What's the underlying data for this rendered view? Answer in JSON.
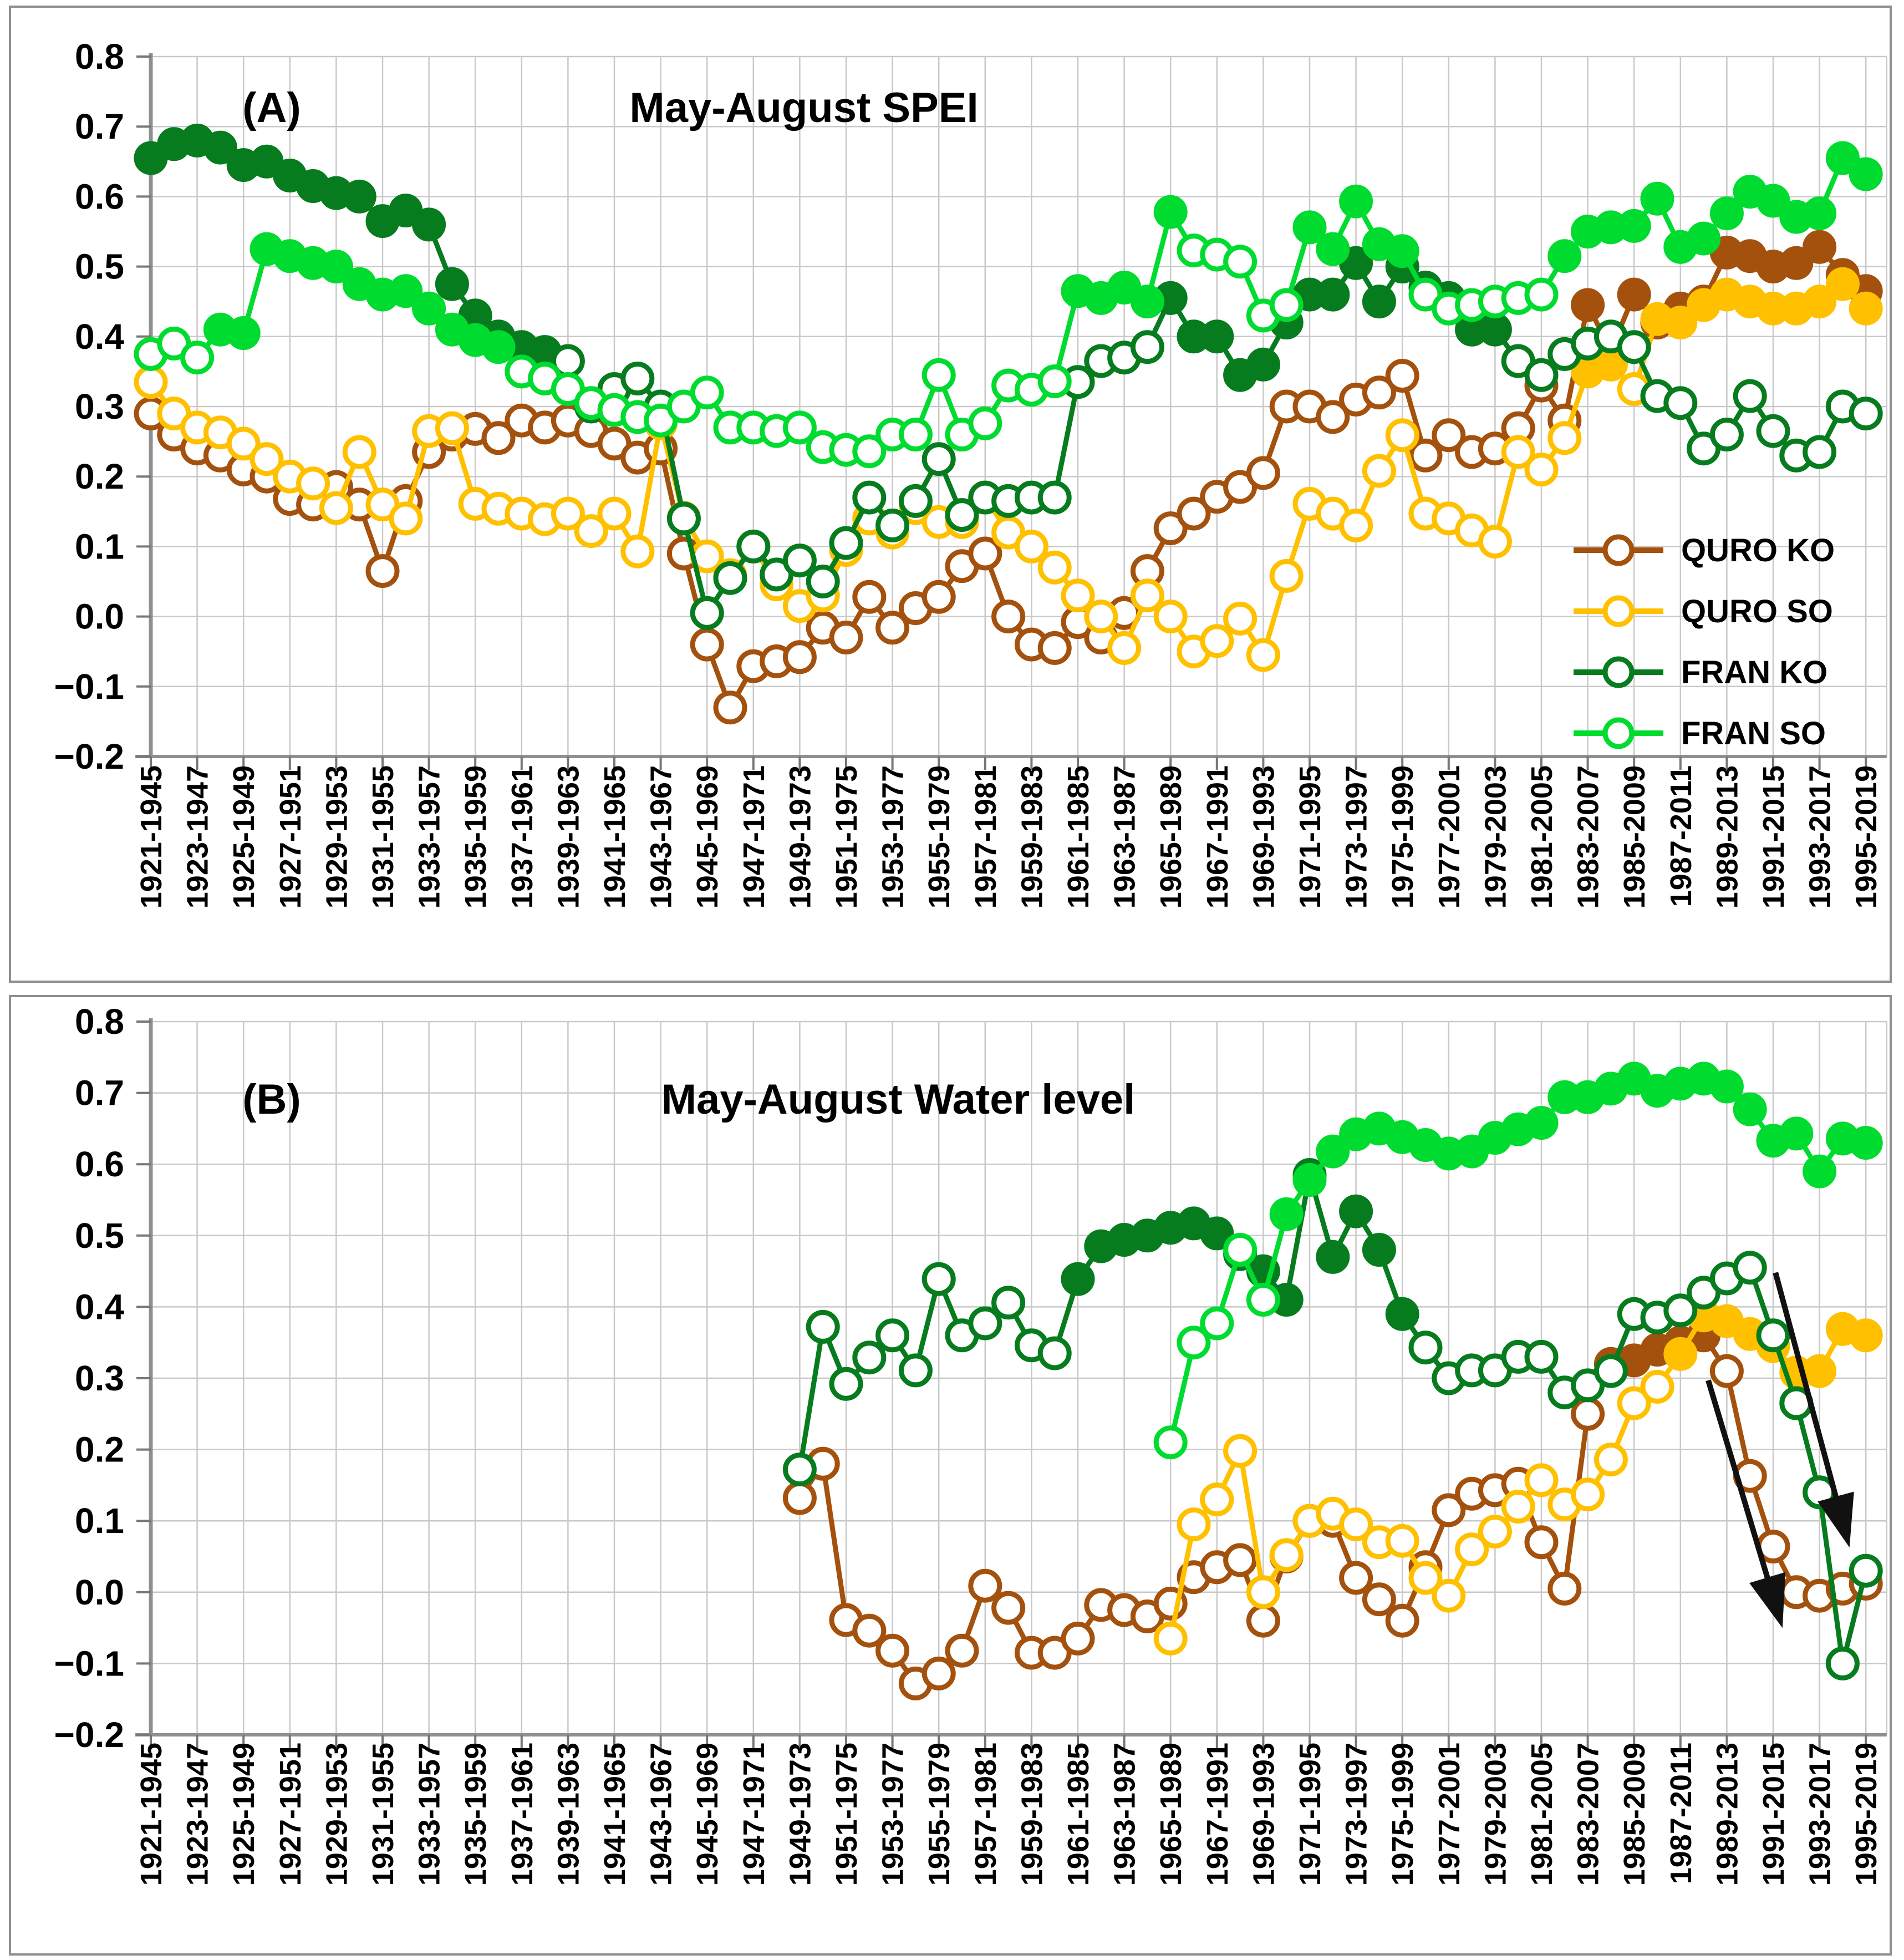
{
  "figure": {
    "panel_a": {
      "label": "(A)",
      "title": "May-August SPEI"
    },
    "panel_b": {
      "label": "(B)",
      "title": "May-August  Water level"
    },
    "y_tick_labels": [
      "0.8",
      "0.7",
      "0.6",
      "0.5",
      "0.4",
      "0.3",
      "0.2",
      "0.1",
      "0.0",
      "−0.1",
      "−0.2"
    ],
    "legend": [
      {
        "label": "QURO KO",
        "color": "#A4510E"
      },
      {
        "label": "QURO SO",
        "color": "#FFC000"
      },
      {
        "label": "FRAN KO",
        "color": "#067C1E"
      },
      {
        "label": "FRAN SO",
        "color": "#00DC2F"
      }
    ]
  },
  "chart_data": [
    {
      "type": "line",
      "panel_label": "(A)",
      "title": "May-August SPEI",
      "ylim": [
        -0.2,
        0.8
      ],
      "y_ticks": [
        0.8,
        0.7,
        0.6,
        0.5,
        0.4,
        0.3,
        0.2,
        0.1,
        0.0,
        -0.1,
        -0.2
      ],
      "grid": true,
      "legend_position": "right-middle",
      "x_tick_labels": [
        "1921-1945",
        "1923-1947",
        "1925-1949",
        "1927-1951",
        "1929-1953",
        "1931-1955",
        "1933-1957",
        "1935-1959",
        "1937-1961",
        "1939-1963",
        "1941-1965",
        "1943-1967",
        "1945-1969",
        "1947-1971",
        "1949-1973",
        "1951-1975",
        "1953-1977",
        "1955-1979",
        "1957-1981",
        "1959-1983",
        "1961-1985",
        "1963-1987",
        "1965-1989",
        "1967-1991",
        "1969-1993",
        "1971-1995",
        "1973-1997",
        "1975-1999",
        "1977-2001",
        "1979-2003",
        "1981-2005",
        "1983-2007",
        "1985-2009",
        "1987-2011",
        "1989-2013",
        "1991-2015",
        "1993-2017",
        "1995-2019"
      ],
      "x_categories": [
        "1921-1945",
        "1922-1946",
        "1923-1947",
        "1924-1948",
        "1925-1949",
        "1926-1950",
        "1927-1951",
        "1928-1952",
        "1929-1953",
        "1930-1954",
        "1931-1955",
        "1932-1956",
        "1933-1957",
        "1934-1958",
        "1935-1959",
        "1936-1960",
        "1937-1961",
        "1938-1962",
        "1939-1963",
        "1940-1964",
        "1941-1965",
        "1942-1966",
        "1943-1967",
        "1944-1968",
        "1945-1969",
        "1946-1970",
        "1947-1971",
        "1948-1972",
        "1949-1973",
        "1950-1974",
        "1951-1975",
        "1952-1976",
        "1953-1977",
        "1954-1978",
        "1955-1979",
        "1956-1980",
        "1957-1981",
        "1958-1982",
        "1959-1983",
        "1960-1984",
        "1961-1985",
        "1962-1986",
        "1963-1987",
        "1964-1988",
        "1965-1989",
        "1966-1990",
        "1967-1991",
        "1968-1992",
        "1969-1993",
        "1970-1994",
        "1971-1995",
        "1972-1996",
        "1973-1997",
        "1974-1998",
        "1975-1999",
        "1976-2000",
        "1977-2001",
        "1978-2002",
        "1979-2003",
        "1980-2004",
        "1981-2005",
        "1982-2006",
        "1983-2007",
        "1984-2008",
        "1985-2009",
        "1986-2010",
        "1987-2011",
        "1988-2012",
        "1989-2013",
        "1990-2014",
        "1991-2015",
        "1992-2016",
        "1993-2017",
        "1994-2018",
        "1995-2019"
      ],
      "series": [
        {
          "name": "QURO KO",
          "color": "#A4510E",
          "filled_segments": [
            [
              63,
              75
            ]
          ],
          "values": [
            0.29,
            0.26,
            0.24,
            0.23,
            0.21,
            0.2,
            0.168,
            0.16,
            0.185,
            0.16,
            0.065,
            0.165,
            0.235,
            0.26,
            0.268,
            0.255,
            0.28,
            0.27,
            0.28,
            0.265,
            0.247,
            0.227,
            0.24,
            0.09,
            -0.04,
            -0.13,
            -0.071,
            -0.064,
            -0.058,
            -0.016,
            -0.03,
            0.028,
            -0.016,
            0.012,
            0.028,
            0.072,
            0.09,
            0.0,
            -0.04,
            -0.045,
            -0.008,
            -0.03,
            0.005,
            0.065,
            0.126,
            0.147,
            0.171,
            0.185,
            0.205,
            0.3,
            0.3,
            0.285,
            0.31,
            0.32,
            0.344,
            0.23,
            0.259,
            0.235,
            0.24,
            0.269,
            0.33,
            0.28,
            0.445,
            0.38,
            0.46,
            0.42,
            0.44,
            0.45,
            0.52,
            0.515,
            0.5,
            0.505,
            0.528,
            0.488,
            0.465
          ]
        },
        {
          "name": "QURO SO",
          "color": "#FFC000",
          "filled_segments": [
            [
              63,
              64
            ],
            [
              66,
              75
            ]
          ],
          "values": [
            0.335,
            0.29,
            0.27,
            0.263,
            0.247,
            0.225,
            0.2,
            0.19,
            0.155,
            0.235,
            0.16,
            0.14,
            0.265,
            0.269,
            0.161,
            0.154,
            0.147,
            0.139,
            0.147,
            0.122,
            0.147,
            0.093,
            0.276,
            0.141,
            0.086,
            0.059,
            0.1,
            0.046,
            0.015,
            0.03,
            0.095,
            0.14,
            0.12,
            0.155,
            0.135,
            0.135,
            0.17,
            0.12,
            0.1,
            0.07,
            0.03,
            0.0,
            -0.045,
            0.03,
            0.0,
            -0.05,
            -0.035,
            -0.003,
            -0.055,
            0.058,
            0.161,
            0.147,
            0.13,
            0.208,
            0.259,
            0.147,
            0.14,
            0.123,
            0.107,
            0.235,
            0.21,
            0.255,
            0.35,
            0.36,
            0.325,
            0.425,
            0.42,
            0.445,
            0.46,
            0.45,
            0.44,
            0.44,
            0.45,
            0.475,
            0.44
          ]
        },
        {
          "name": "FRAN KO",
          "color": "#067C1E",
          "filled_segments": [
            [
              1,
              18
            ],
            [
              45,
              59
            ]
          ],
          "values": [
            0.655,
            0.675,
            0.68,
            0.67,
            0.645,
            0.65,
            0.63,
            0.615,
            0.605,
            0.6,
            0.565,
            0.58,
            0.56,
            0.475,
            0.43,
            0.4,
            0.385,
            0.378,
            0.365,
            0.3,
            0.325,
            0.34,
            0.3,
            0.14,
            0.005,
            0.055,
            0.1,
            0.06,
            0.08,
            0.05,
            0.105,
            0.17,
            0.13,
            0.165,
            0.225,
            0.145,
            0.17,
            0.165,
            0.17,
            0.17,
            0.335,
            0.365,
            0.37,
            0.385,
            0.455,
            0.4,
            0.4,
            0.345,
            0.36,
            0.42,
            0.46,
            0.46,
            0.505,
            0.45,
            0.5,
            0.47,
            0.455,
            0.41,
            0.41,
            0.365,
            0.345,
            0.375,
            0.39,
            0.4,
            0.385,
            0.315,
            0.305,
            0.24,
            0.26,
            0.315,
            0.265,
            0.23,
            0.235,
            0.3,
            0.29
          ]
        },
        {
          "name": "FRAN SO",
          "color": "#00DC2F",
          "filled_segments": [
            [
              4,
              16
            ],
            [
              41,
              45
            ],
            [
              51,
              55
            ],
            [
              62,
              75
            ]
          ],
          "values": [
            0.375,
            0.39,
            0.37,
            0.41,
            0.405,
            0.525,
            0.515,
            0.505,
            0.5,
            0.475,
            0.46,
            0.465,
            0.44,
            0.41,
            0.395,
            0.385,
            0.35,
            0.34,
            0.325,
            0.305,
            0.295,
            0.285,
            0.28,
            0.3,
            0.32,
            0.27,
            0.27,
            0.265,
            0.27,
            0.242,
            0.238,
            0.236,
            0.26,
            0.26,
            0.345,
            0.26,
            0.276,
            0.33,
            0.324,
            0.336,
            0.465,
            0.455,
            0.47,
            0.45,
            0.578,
            0.523,
            0.517,
            0.507,
            0.43,
            0.445,
            0.556,
            0.525,
            0.593,
            0.532,
            0.522,
            0.46,
            0.44,
            0.445,
            0.45,
            0.455,
            0.46,
            0.515,
            0.55,
            0.556,
            0.558,
            0.597,
            0.528,
            0.54,
            0.576,
            0.607,
            0.594,
            0.571,
            0.576,
            0.655,
            0.632
          ]
        }
      ]
    },
    {
      "type": "line",
      "panel_label": "(B)",
      "title": "May-August  Water level",
      "ylim": [
        -0.2,
        0.8
      ],
      "y_ticks": [
        0.8,
        0.7,
        0.6,
        0.5,
        0.4,
        0.3,
        0.2,
        0.1,
        0.0,
        -0.1,
        -0.2
      ],
      "grid": true,
      "x_tick_labels": [
        "1921-1945",
        "1923-1947",
        "1925-1949",
        "1927-1951",
        "1929-1953",
        "1931-1955",
        "1933-1957",
        "1935-1959",
        "1937-1961",
        "1939-1963",
        "1941-1965",
        "1943-1967",
        "1945-1969",
        "1947-1971",
        "1949-1973",
        "1951-1975",
        "1953-1977",
        "1955-1979",
        "1957-1981",
        "1959-1983",
        "1961-1985",
        "1963-1987",
        "1965-1989",
        "1967-1991",
        "1969-1993",
        "1971-1995",
        "1973-1997",
        "1975-1999",
        "1977-2001",
        "1979-2003",
        "1981-2005",
        "1983-2007",
        "1985-2009",
        "1987-2011",
        "1989-2013",
        "1991-2015",
        "1993-2017",
        "1995-2019"
      ],
      "x_categories": [
        "1921-1945",
        "1922-1946",
        "1923-1947",
        "1924-1948",
        "1925-1949",
        "1926-1950",
        "1927-1951",
        "1928-1952",
        "1929-1953",
        "1930-1954",
        "1931-1955",
        "1932-1956",
        "1933-1957",
        "1934-1958",
        "1935-1959",
        "1936-1960",
        "1937-1961",
        "1938-1962",
        "1939-1963",
        "1940-1964",
        "1941-1965",
        "1942-1966",
        "1943-1967",
        "1944-1968",
        "1945-1969",
        "1946-1970",
        "1947-1971",
        "1948-1972",
        "1949-1973",
        "1950-1974",
        "1951-1975",
        "1952-1976",
        "1953-1977",
        "1954-1978",
        "1955-1979",
        "1956-1980",
        "1957-1981",
        "1958-1982",
        "1959-1983",
        "1960-1984",
        "1961-1985",
        "1962-1986",
        "1963-1987",
        "1964-1988",
        "1965-1989",
        "1966-1990",
        "1967-1991",
        "1968-1992",
        "1969-1993",
        "1970-1994",
        "1971-1995",
        "1972-1996",
        "1973-1997",
        "1974-1998",
        "1975-1999",
        "1976-2000",
        "1977-2001",
        "1978-2002",
        "1979-2003",
        "1980-2004",
        "1981-2005",
        "1982-2006",
        "1983-2007",
        "1984-2008",
        "1985-2009",
        "1986-2010",
        "1987-2011",
        "1988-2012",
        "1989-2013",
        "1990-2014",
        "1991-2015",
        "1992-2016",
        "1993-2017",
        "1994-2018",
        "1995-2019"
      ],
      "series": [
        {
          "name": "QURO KO",
          "color": "#A4510E",
          "filled_segments": [
            [
              64,
              68
            ]
          ],
          "values": [
            null,
            null,
            null,
            null,
            null,
            null,
            null,
            null,
            null,
            null,
            null,
            null,
            null,
            null,
            null,
            null,
            null,
            null,
            null,
            null,
            null,
            null,
            null,
            null,
            null,
            null,
            null,
            null,
            0.132,
            0.18,
            -0.039,
            -0.054,
            -0.082,
            -0.128,
            -0.114,
            -0.082,
            0.009,
            -0.022,
            -0.085,
            -0.085,
            -0.065,
            -0.018,
            -0.025,
            -0.034,
            -0.016,
            0.021,
            0.035,
            0.045,
            -0.04,
            0.05,
            0.1,
            0.1,
            0.02,
            -0.01,
            -0.04,
            0.035,
            0.115,
            0.138,
            0.143,
            0.152,
            0.07,
            0.005,
            0.25,
            0.32,
            0.325,
            0.34,
            0.35,
            0.36,
            0.31,
            0.163,
            0.064,
            0.0,
            -0.005,
            0.005,
            0.012
          ]
        },
        {
          "name": "QURO SO",
          "color": "#FFC000",
          "filled_segments": [
            [
              67,
              75
            ]
          ],
          "values": [
            null,
            null,
            null,
            null,
            null,
            null,
            null,
            null,
            null,
            null,
            null,
            null,
            null,
            null,
            null,
            null,
            null,
            null,
            null,
            null,
            null,
            null,
            null,
            null,
            null,
            null,
            null,
            null,
            null,
            null,
            null,
            null,
            null,
            null,
            null,
            null,
            null,
            null,
            null,
            null,
            null,
            null,
            null,
            null,
            -0.065,
            0.095,
            0.13,
            0.198,
            0.0,
            0.052,
            0.1,
            0.11,
            0.095,
            0.07,
            0.072,
            0.02,
            -0.005,
            0.06,
            0.085,
            0.12,
            0.157,
            0.123,
            0.137,
            0.186,
            0.265,
            0.288,
            0.334,
            0.388,
            0.38,
            0.362,
            0.345,
            0.308,
            0.31,
            0.369,
            0.36
          ]
        },
        {
          "name": "FRAN KO",
          "color": "#067C1E",
          "filled_segments": [
            [
              41,
              55
            ]
          ],
          "values": [
            null,
            null,
            null,
            null,
            null,
            null,
            null,
            null,
            null,
            null,
            null,
            null,
            null,
            null,
            null,
            null,
            null,
            null,
            null,
            null,
            null,
            null,
            null,
            null,
            null,
            null,
            null,
            null,
            0.172,
            0.372,
            0.292,
            0.329,
            0.36,
            0.311,
            0.439,
            0.36,
            0.377,
            0.406,
            0.346,
            0.335,
            0.439,
            0.485,
            0.494,
            0.5,
            0.511,
            0.517,
            0.503,
            0.474,
            0.45,
            0.41,
            0.585,
            0.47,
            0.534,
            0.48,
            0.39,
            0.343,
            0.3,
            0.311,
            0.311,
            0.33,
            0.33,
            0.28,
            0.29,
            0.31,
            0.39,
            0.385,
            0.395,
            0.42,
            0.44,
            0.455,
            0.36,
            0.265,
            0.14,
            -0.1,
            0.03
          ]
        },
        {
          "name": "FRAN SO",
          "color": "#00DC2F",
          "filled_segments": [
            [
              50,
              75
            ]
          ],
          "values": [
            null,
            null,
            null,
            null,
            null,
            null,
            null,
            null,
            null,
            null,
            null,
            null,
            null,
            null,
            null,
            null,
            null,
            null,
            null,
            null,
            null,
            null,
            null,
            null,
            null,
            null,
            null,
            null,
            null,
            null,
            null,
            null,
            null,
            null,
            null,
            null,
            null,
            null,
            null,
            null,
            null,
            null,
            null,
            null,
            0.21,
            0.35,
            0.377,
            0.48,
            0.41,
            0.53,
            0.578,
            0.618,
            0.642,
            0.65,
            0.638,
            0.627,
            0.615,
            0.618,
            0.637,
            0.649,
            0.658,
            0.694,
            0.694,
            0.706,
            0.72,
            0.703,
            0.713,
            0.72,
            0.709,
            0.677,
            0.633,
            0.643,
            0.59,
            0.636,
            0.63
          ]
        }
      ],
      "annotations": {
        "arrows": [
          {
            "from_cat": 68.2,
            "from_val": 0.297,
            "to_cat": 71.3,
            "to_val": -0.039
          },
          {
            "from_cat": 71.1,
            "from_val": 0.448,
            "to_cat": 74.2,
            "to_val": 0.074
          }
        ]
      }
    }
  ]
}
